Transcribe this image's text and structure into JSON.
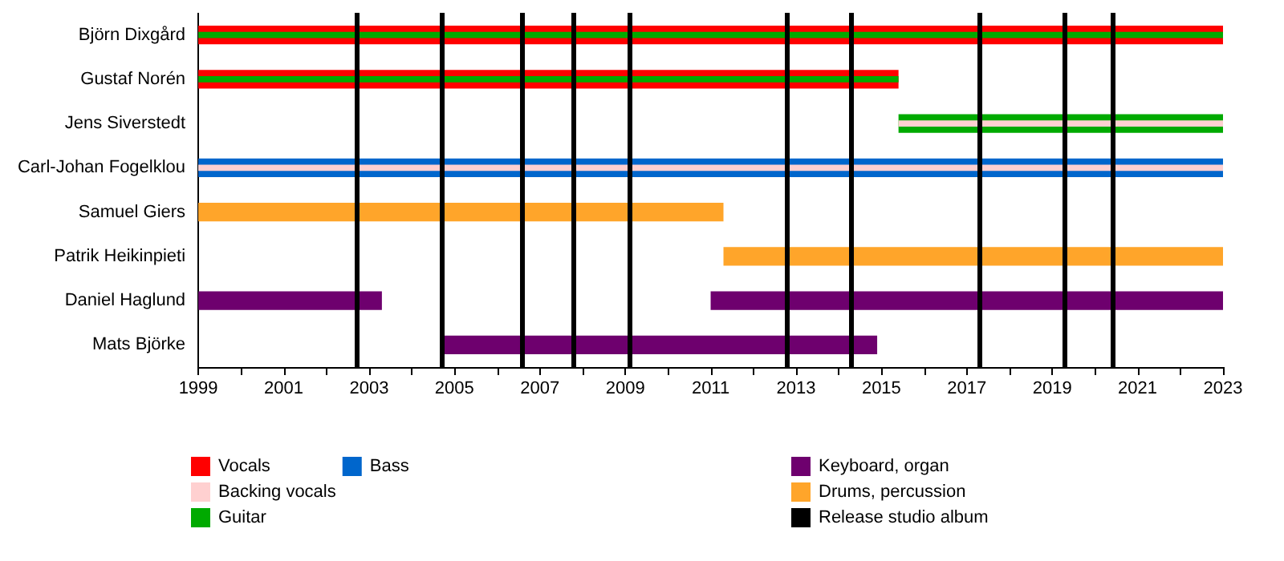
{
  "chart_data": {
    "type": "bar",
    "orientation": "horizontal",
    "categories": [
      "Björn Dixgård",
      "Gustaf Norén",
      "Jens Siverstedt",
      "Carl-Johan Fogelklou",
      "Samuel Giers",
      "Patrik Heikinpieti",
      "Daniel Haglund",
      "Mats Björke"
    ],
    "series": [
      {
        "name": "Vocals",
        "color": "#ff0000",
        "base": [
          1999,
          1999,
          null,
          null,
          null,
          null,
          null,
          null
        ],
        "values": [
          24,
          16.4,
          null,
          null,
          null,
          null,
          null,
          null
        ]
      },
      {
        "name": "Backing vocals",
        "color": "#ffd0d0",
        "base": [
          null,
          null,
          2015.4,
          1999,
          null,
          null,
          null,
          null
        ],
        "values": [
          null,
          null,
          7.6,
          24,
          null,
          null,
          null,
          null
        ]
      },
      {
        "name": "Guitar",
        "color": "#00aa00",
        "base": [
          1999,
          1999,
          2015.4,
          null,
          null,
          null,
          null,
          null
        ],
        "values": [
          24,
          16.4,
          7.6,
          null,
          null,
          null,
          null,
          null
        ]
      },
      {
        "name": "Bass",
        "color": "#0066cc",
        "base": [
          null,
          null,
          null,
          1999,
          null,
          null,
          null,
          null
        ],
        "values": [
          null,
          null,
          null,
          24,
          null,
          null,
          null,
          null
        ]
      },
      {
        "name": "Keyboard, organ",
        "color": "#6e006e",
        "base": [
          null,
          null,
          null,
          null,
          null,
          null,
          1999,
          2004.7
        ],
        "values": [
          null,
          null,
          null,
          null,
          null,
          null,
          4.3,
          10.2
        ]
      },
      {
        "color": "#6e006e",
        "base": [
          null,
          null,
          null,
          null,
          null,
          null,
          2011.0,
          null
        ],
        "values": [
          null,
          null,
          null,
          null,
          null,
          null,
          12.0,
          null
        ]
      },
      {
        "name": "Drums, percussion",
        "color": "#ffa52a",
        "base": [
          null,
          null,
          null,
          null,
          1999,
          2011.3,
          null,
          null
        ],
        "values": [
          null,
          null,
          null,
          null,
          12.3,
          11.7,
          null,
          null
        ]
      },
      {
        "name": "Release studio album",
        "color": "#000000",
        "values": [
          null,
          null,
          null,
          null,
          null,
          null,
          null,
          null
        ]
      }
    ],
    "xlim": [
      1999,
      2023
    ],
    "xticks": [
      1999,
      {
        "value": 2000,
        "label": null
      },
      2001,
      {
        "value": 2002,
        "label": null
      },
      2003,
      {
        "value": 2004,
        "label": null
      },
      2005,
      {
        "value": 2006,
        "label": null
      },
      2007,
      {
        "value": 2008,
        "label": null
      },
      2009,
      {
        "value": 2010,
        "label": null
      },
      2011,
      {
        "value": 2012,
        "label": null
      },
      2013,
      {
        "value": 2014,
        "label": null
      },
      2015,
      {
        "value": 2016,
        "label": null
      },
      2017,
      {
        "value": 2018,
        "label": null
      },
      2019,
      {
        "value": 2020,
        "label": null
      },
      2021,
      {
        "value": 2022,
        "label": null
      },
      2023
    ],
    "ref_lines": [
      {
        "axis": "x",
        "value": 2002.7,
        "color": "#000000"
      },
      {
        "axis": "x",
        "value": 2004.7,
        "color": "#000000"
      },
      {
        "axis": "x",
        "value": 2006.6,
        "color": "#000000"
      },
      {
        "axis": "x",
        "value": 2007.8,
        "color": "#000000"
      },
      {
        "axis": "x",
        "value": 2009.1,
        "color": "#000000"
      },
      {
        "axis": "x",
        "value": 2012.8,
        "color": "#000000"
      },
      {
        "axis": "x",
        "value": 2014.3,
        "color": "#000000"
      },
      {
        "axis": "x",
        "value": 2017.3,
        "color": "#000000"
      },
      {
        "axis": "x",
        "value": 2019.3,
        "color": "#000000"
      },
      {
        "axis": "x",
        "value": 2020.4,
        "color": "#000000"
      }
    ],
    "grid": false,
    "legend": "bottom"
  }
}
